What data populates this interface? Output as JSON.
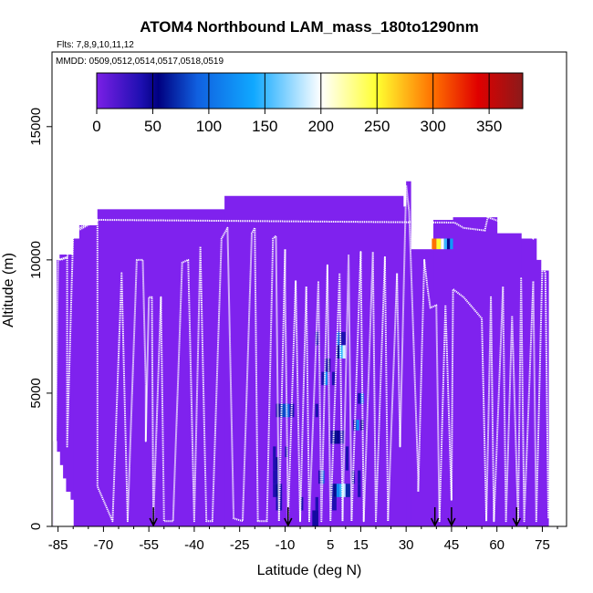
{
  "chart_data": {
    "type": "heatmap",
    "title": "ATOM4 Northbound LAM_mass_180to1290nm",
    "subtitle_flights": "Flts: 7,8,9,10,11,12",
    "subtitle_dates": "MMDD: 0509,0512,0514,0517,0518,0519",
    "xlabel": "Latitude (deg N)",
    "ylabel": "Altitude (m)",
    "xlim": [
      -87,
      83
    ],
    "ylim": [
      0,
      17800
    ],
    "x_ticks": [
      -85,
      -70,
      -55,
      -40,
      -25,
      -10,
      5,
      15,
      30,
      45,
      60,
      75
    ],
    "x_tick_labels": [
      "-85",
      "-70",
      "-55",
      "-40",
      "-25",
      "-10",
      "5",
      "15",
      "30",
      "45",
      "60",
      "75"
    ],
    "y_ticks": [
      0,
      5000,
      10000,
      15000
    ],
    "y_tick_labels": [
      "0",
      "5000",
      "10000",
      "15000"
    ],
    "colorbar": {
      "min": 0,
      "max": 380,
      "ticks": [
        0,
        50,
        100,
        150,
        200,
        250,
        300,
        350
      ],
      "tick_labels": [
        "0",
        "50",
        "100",
        "150",
        "200",
        "250",
        "300",
        "350"
      ],
      "stops": [
        {
          "value": 0,
          "color": "#7a1fe6"
        },
        {
          "value": 40,
          "color": "#1d0fb0"
        },
        {
          "value": 55,
          "color": "#000080"
        },
        {
          "value": 90,
          "color": "#1060e0"
        },
        {
          "value": 140,
          "color": "#10a8ff"
        },
        {
          "value": 200,
          "color": "#ffffff"
        },
        {
          "value": 250,
          "color": "#ffff30"
        },
        {
          "value": 300,
          "color": "#ff7000"
        },
        {
          "value": 340,
          "color": "#e00000"
        },
        {
          "value": 380,
          "color": "#8b1a1a"
        }
      ]
    },
    "background_color": "#7f22ee",
    "coverage_columns": [
      {
        "x0": -86.5,
        "x1": -85.5,
        "top": 3200
      },
      {
        "x0": -85.5,
        "x1": -84.5,
        "top": 10000
      },
      {
        "x0": -84.5,
        "x1": -80.0,
        "top": 10200
      },
      {
        "x0": -80.0,
        "x1": -78.0,
        "top": 10800
      },
      {
        "x0": -78.0,
        "x1": -72.0,
        "top": 11300
      },
      {
        "x0": -72.0,
        "x1": -30.0,
        "top": 11900
      },
      {
        "x0": -30.0,
        "x1": 29.0,
        "top": 12400
      },
      {
        "x0": 29.0,
        "x1": 30.0,
        "top": 12000
      },
      {
        "x0": 30.0,
        "x1": 31.5,
        "top": 12950
      },
      {
        "x0": 31.5,
        "x1": 39.0,
        "top": 10400
      },
      {
        "x0": 39.0,
        "x1": 45.5,
        "top": 11500
      },
      {
        "x0": 45.5,
        "x1": 60.0,
        "top": 11600
      },
      {
        "x0": 60.0,
        "x1": 68.0,
        "top": 11000
      },
      {
        "x0": 68.0,
        "x1": 73.0,
        "top": 10800
      },
      {
        "x0": 73.0,
        "x1": 74.5,
        "top": 10000
      },
      {
        "x0": 74.5,
        "x1": 77.0,
        "top": 9600
      }
    ],
    "bottom_gap_cells": [
      {
        "x0": -86.5,
        "x1": -85.5,
        "y0": 0,
        "y1": 3200
      },
      {
        "x0": -85.5,
        "x1": -84.5,
        "y0": 0,
        "y1": 2800
      },
      {
        "x0": -84.5,
        "x1": -83.5,
        "y0": 0,
        "y1": 2300
      },
      {
        "x0": -83.5,
        "x1": -82.5,
        "y0": 0,
        "y1": 1800
      },
      {
        "x0": -82.5,
        "x1": -81.0,
        "y0": 0,
        "y1": 1300
      },
      {
        "x0": -81.0,
        "x1": -80.0,
        "y0": 0,
        "y1": 1000
      }
    ],
    "cells": [
      {
        "x0": 38.5,
        "x1": 40.0,
        "y0": 10400,
        "y1": 10800,
        "value": 300
      },
      {
        "x0": 40.0,
        "x1": 41.5,
        "y0": 10400,
        "y1": 10800,
        "value": 250
      },
      {
        "x0": 41.5,
        "x1": 42.5,
        "y0": 10400,
        "y1": 10800,
        "value": 200
      },
      {
        "x0": 42.5,
        "x1": 43.5,
        "y0": 10400,
        "y1": 10800,
        "value": 150
      },
      {
        "x0": 43.5,
        "x1": 44.5,
        "y0": 10400,
        "y1": 10800,
        "value": 60
      },
      {
        "x0": 44.5,
        "x1": 45.5,
        "y0": 10400,
        "y1": 10800,
        "value": 130
      },
      {
        "x0": 0.0,
        "x1": 1.0,
        "y0": 6800,
        "y1": 7300,
        "value": 40
      },
      {
        "x0": 7.0,
        "x1": 8.0,
        "y0": 6800,
        "y1": 7300,
        "value": 90
      },
      {
        "x0": 8.0,
        "x1": 10.0,
        "y0": 6800,
        "y1": 7300,
        "value": 40
      },
      {
        "x0": 7.0,
        "x1": 8.0,
        "y0": 6300,
        "y1": 6800,
        "value": 60
      },
      {
        "x0": 8.0,
        "x1": 9.0,
        "y0": 6300,
        "y1": 6800,
        "value": 140
      },
      {
        "x0": 9.0,
        "x1": 10.0,
        "y0": 6300,
        "y1": 6800,
        "value": 190
      },
      {
        "x0": 3.0,
        "x1": 4.0,
        "y0": 5800,
        "y1": 6300,
        "value": 40
      },
      {
        "x0": 4.0,
        "x1": 5.0,
        "y0": 5800,
        "y1": 6300,
        "value": 50
      },
      {
        "x0": 2.0,
        "x1": 3.0,
        "y0": 5300,
        "y1": 5800,
        "value": 40
      },
      {
        "x0": 3.0,
        "x1": 4.0,
        "y0": 5300,
        "y1": 5800,
        "value": 120
      },
      {
        "x0": 5.5,
        "x1": 6.5,
        "y0": 5300,
        "y1": 5800,
        "value": 40
      },
      {
        "x0": 14.0,
        "x1": 15.0,
        "y0": 4600,
        "y1": 5000,
        "value": 40
      },
      {
        "x0": 15.0,
        "x1": 16.0,
        "y0": 4600,
        "y1": 5000,
        "value": 100
      },
      {
        "x0": -13.0,
        "x1": -11.5,
        "y0": 4100,
        "y1": 4600,
        "value": 45
      },
      {
        "x0": -11.5,
        "x1": -10.0,
        "y0": 4100,
        "y1": 4600,
        "value": 80
      },
      {
        "x0": -10.0,
        "x1": -8.5,
        "y0": 4100,
        "y1": 4600,
        "value": 90
      },
      {
        "x0": -8.5,
        "x1": -7.0,
        "y0": 4100,
        "y1": 4600,
        "value": 40
      },
      {
        "x0": 0.0,
        "x1": 1.0,
        "y0": 4100,
        "y1": 4600,
        "value": 40
      },
      {
        "x0": 12.5,
        "x1": 13.5,
        "y0": 3600,
        "y1": 4000,
        "value": 40
      },
      {
        "x0": 13.5,
        "x1": 14.5,
        "y0": 3600,
        "y1": 4000,
        "value": 120
      },
      {
        "x0": 15.0,
        "x1": 16.0,
        "y0": 3600,
        "y1": 4000,
        "value": 50
      },
      {
        "x0": 5.0,
        "x1": 6.0,
        "y0": 3100,
        "y1": 3600,
        "value": 40
      },
      {
        "x0": 6.0,
        "x1": 7.0,
        "y0": 3100,
        "y1": 3600,
        "value": 60
      },
      {
        "x0": 7.0,
        "x1": 8.0,
        "y0": 3100,
        "y1": 3600,
        "value": 50
      },
      {
        "x0": 8.0,
        "x1": 9.5,
        "y0": 3100,
        "y1": 3600,
        "value": 40
      },
      {
        "x0": -14.0,
        "x1": -13.0,
        "y0": 2600,
        "y1": 3000,
        "value": 40
      },
      {
        "x0": -10.0,
        "x1": -9.0,
        "y0": 2600,
        "y1": 3000,
        "value": 40
      },
      {
        "x0": 10.0,
        "x1": 11.0,
        "y0": 2600,
        "y1": 3000,
        "value": 40
      },
      {
        "x0": -14.0,
        "x1": -13.0,
        "y0": 2100,
        "y1": 2600,
        "value": 40
      },
      {
        "x0": -13.0,
        "x1": -12.0,
        "y0": 2100,
        "y1": 2600,
        "value": 45
      },
      {
        "x0": 10.0,
        "x1": 11.0,
        "y0": 2100,
        "y1": 2600,
        "value": 40
      },
      {
        "x0": -14.0,
        "x1": -12.0,
        "y0": 1600,
        "y1": 2100,
        "value": 40
      },
      {
        "x0": 12.0,
        "x1": 13.0,
        "y0": 1600,
        "y1": 2100,
        "value": 40
      },
      {
        "x0": 14.0,
        "x1": 15.0,
        "y0": 1600,
        "y1": 2100,
        "value": 40
      },
      {
        "x0": 1.0,
        "x1": 2.0,
        "y0": 1600,
        "y1": 2100,
        "value": 40
      },
      {
        "x0": 2.0,
        "x1": 3.0,
        "y0": 1600,
        "y1": 2100,
        "value": 90
      },
      {
        "x0": -14.0,
        "x1": -13.0,
        "y0": 1100,
        "y1": 1600,
        "value": 40
      },
      {
        "x0": -13.0,
        "x1": -12.0,
        "y0": 1100,
        "y1": 1600,
        "value": 60
      },
      {
        "x0": -12.0,
        "x1": -11.0,
        "y0": 1100,
        "y1": 1600,
        "value": 40
      },
      {
        "x0": 5.0,
        "x1": 6.0,
        "y0": 1100,
        "y1": 1600,
        "value": 40
      },
      {
        "x0": 6.0,
        "x1": 7.0,
        "y0": 1100,
        "y1": 1600,
        "value": 60
      },
      {
        "x0": 7.0,
        "x1": 8.0,
        "y0": 1100,
        "y1": 1600,
        "value": 120
      },
      {
        "x0": 8.0,
        "x1": 9.0,
        "y0": 1100,
        "y1": 1600,
        "value": 150
      },
      {
        "x0": 9.0,
        "x1": 10.0,
        "y0": 1100,
        "y1": 1600,
        "value": 180
      },
      {
        "x0": 10.0,
        "x1": 11.5,
        "y0": 1100,
        "y1": 1600,
        "value": 70
      },
      {
        "x0": 14.0,
        "x1": 15.0,
        "y0": 1100,
        "y1": 1600,
        "value": 40
      },
      {
        "x0": -13.0,
        "x1": -11.0,
        "y0": 600,
        "y1": 1100,
        "value": 40
      },
      {
        "x0": -5.0,
        "x1": -4.0,
        "y0": 600,
        "y1": 1100,
        "value": 40
      },
      {
        "x0": 0.0,
        "x1": 1.0,
        "y0": 600,
        "y1": 1100,
        "value": 40
      },
      {
        "x0": 5.5,
        "x1": 7.0,
        "y0": 600,
        "y1": 1100,
        "value": 40
      },
      {
        "x0": -1.0,
        "x1": 1.0,
        "y0": 0,
        "y1": 600,
        "value": 45
      }
    ],
    "flight_track": {
      "color": "#ffffff",
      "points": [
        [
          -86,
          600
        ],
        [
          -85,
          10000
        ],
        [
          -82,
          10100
        ],
        [
          -82,
          3000
        ],
        [
          -80,
          11000
        ],
        [
          -78,
          11200
        ],
        [
          -72,
          11500
        ],
        [
          -72,
          1500
        ],
        [
          -67,
          200
        ],
        [
          -64,
          9500
        ],
        [
          -62,
          200
        ],
        [
          -59,
          10000
        ],
        [
          -57,
          10000
        ],
        [
          -56,
          5300
        ],
        [
          -56,
          3200
        ],
        [
          -55,
          8600
        ],
        [
          -54,
          8600
        ],
        [
          -53.5,
          200
        ],
        [
          -51,
          8600
        ],
        [
          -50,
          200
        ],
        [
          -47,
          200
        ],
        [
          -44,
          9900
        ],
        [
          -42,
          10000
        ],
        [
          -40,
          200
        ],
        [
          -38,
          10500
        ],
        [
          -36,
          200
        ],
        [
          -34,
          200
        ],
        [
          -31,
          10800
        ],
        [
          -29,
          11200
        ],
        [
          -27,
          300
        ],
        [
          -24,
          200
        ],
        [
          -21,
          11000
        ],
        [
          -20,
          11200
        ],
        [
          -19,
          200
        ],
        [
          -16,
          200
        ],
        [
          -14,
          10800
        ],
        [
          -13,
          10900
        ],
        [
          -12,
          200
        ],
        [
          -10,
          10400
        ],
        [
          -10,
          9000
        ],
        [
          -9,
          200
        ],
        [
          -6.5,
          9200
        ],
        [
          -5,
          200
        ],
        [
          -3,
          9000
        ],
        [
          -2,
          200
        ],
        [
          1,
          9200
        ],
        [
          2,
          200
        ],
        [
          4,
          9800
        ],
        [
          5,
          200
        ],
        [
          8,
          9500
        ],
        [
          9,
          200
        ],
        [
          11,
          10200
        ],
        [
          12,
          200
        ],
        [
          15,
          10300
        ],
        [
          16,
          200
        ],
        [
          19,
          10300
        ],
        [
          20,
          200
        ],
        [
          23,
          10100
        ],
        [
          24,
          200
        ],
        [
          27,
          9500
        ],
        [
          28,
          3000
        ],
        [
          30,
          12800
        ],
        [
          31,
          11800
        ],
        [
          34,
          1800
        ],
        [
          34,
          1300
        ],
        [
          36,
          10000
        ],
        [
          37,
          9000
        ],
        [
          38,
          8200
        ],
        [
          40,
          8300
        ],
        [
          41,
          200
        ],
        [
          43,
          8300
        ],
        [
          45,
          1000
        ],
        [
          45.5,
          8900
        ],
        [
          49,
          8600
        ],
        [
          52,
          8200
        ],
        [
          55,
          7800
        ],
        [
          56.5,
          200
        ],
        [
          58,
          8600
        ],
        [
          59,
          200
        ],
        [
          62,
          9000
        ],
        [
          63,
          200
        ],
        [
          65,
          7900
        ],
        [
          67,
          200
        ],
        [
          68,
          9300
        ],
        [
          69,
          200
        ],
        [
          72,
          9200
        ],
        [
          73,
          200
        ],
        [
          75,
          9800
        ],
        [
          76,
          9500
        ],
        [
          77,
          300
        ]
      ],
      "upper_trace": [
        [
          -86,
          10100
        ],
        [
          -84,
          10000
        ],
        [
          -82,
          10100
        ],
        [
          -80,
          11000
        ],
        [
          -72,
          11500
        ],
        [
          46,
          11400
        ],
        [
          49,
          11200
        ],
        [
          56,
          11100
        ],
        [
          57,
          11600
        ],
        [
          62,
          11400
        ],
        [
          68,
          11300
        ],
        [
          72,
          10800
        ],
        [
          74,
          11000
        ]
      ]
    },
    "arrow_markers": [
      -53.5,
      -9,
      39.5,
      45,
      66.5
    ]
  }
}
